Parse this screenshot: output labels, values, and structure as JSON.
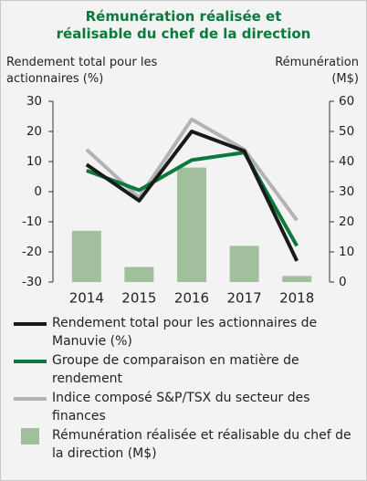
{
  "chart_data": {
    "type": "bar_line",
    "title": "Rémunération réalisée et réalisable du chef de la direction",
    "y_label": "Rendement total pour les actionnaires (%)",
    "y2_label": "Rémunération (M$)",
    "categories": [
      "2014",
      "2015",
      "2016",
      "2017",
      "2018"
    ],
    "ylim": [
      -30,
      30
    ],
    "yticks": [
      -30,
      -20,
      -10,
      0,
      10,
      20,
      30
    ],
    "y2lim": [
      0,
      60
    ],
    "y2ticks": [
      0,
      10,
      20,
      30,
      40,
      50,
      60
    ],
    "series": [
      {
        "name": "Rendement total pour les actionnaires de Manuvie (%)",
        "type": "line",
        "color": "#1a1a1a",
        "values": [
          9,
          -3,
          20,
          13.5,
          -23
        ]
      },
      {
        "name": "Groupe de comparaison en matière de rendement",
        "type": "line",
        "color": "#0a7a3c",
        "values": [
          7,
          0.5,
          10.5,
          13,
          -18
        ]
      },
      {
        "name": "Indice composé S&P/TSX du secteur des finances",
        "type": "line",
        "color": "#b3b3b3",
        "values": [
          14,
          -2,
          24,
          14,
          -9.5
        ]
      },
      {
        "name": "Rémunération réalisée et réalisable du chef de la direction (M$)",
        "type": "bar",
        "axis": "y2",
        "color": "#a2bf9d",
        "values": [
          17,
          5,
          38,
          12,
          2
        ]
      }
    ]
  }
}
